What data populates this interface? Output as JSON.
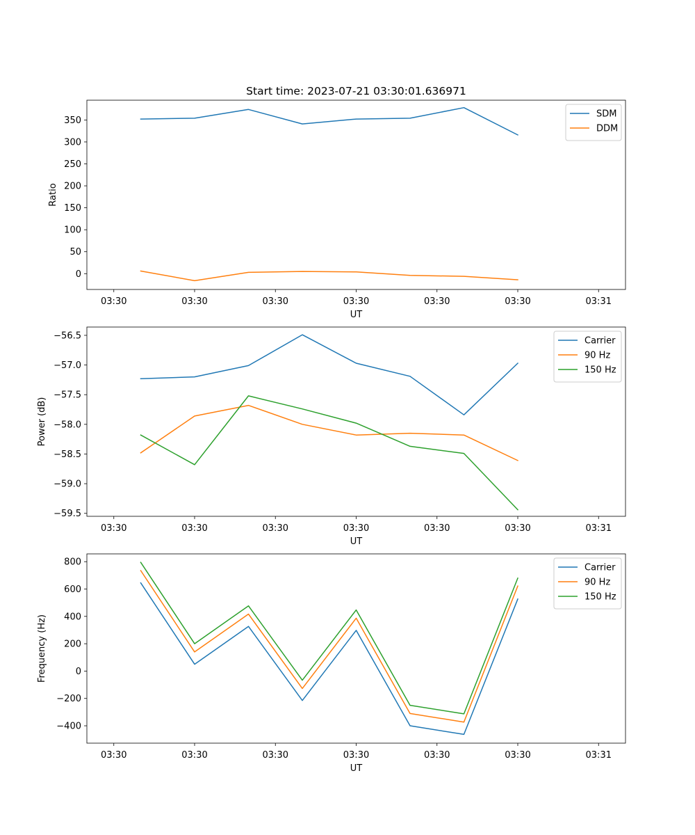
{
  "figure_title": "Start time: 2023-07-21 03:30:01.636971",
  "chart_data": [
    {
      "type": "line",
      "title": "Start time: 2023-07-21 03:30:01.636971",
      "xlabel": "UT",
      "ylabel": "Ratio",
      "x": [
        1,
        2,
        3,
        4,
        5,
        6,
        7,
        8
      ],
      "xlim": [
        0,
        10
      ],
      "xticks": [
        0.5,
        2,
        3.5,
        5,
        6.5,
        8,
        9.5
      ],
      "xtick_labels": [
        "03:30",
        "03:30",
        "03:30",
        "03:30",
        "03:30",
        "03:30",
        "03:31"
      ],
      "ylim": [
        -36,
        395
      ],
      "yticks": [
        0,
        50,
        100,
        150,
        200,
        250,
        300,
        350
      ],
      "ytick_labels": [
        "0",
        "50",
        "100",
        "150",
        "200",
        "250",
        "300",
        "350"
      ],
      "legend_position": "top-right",
      "series": [
        {
          "name": "SDM",
          "color": "#1f77b4",
          "values": [
            352,
            354,
            374,
            341,
            352,
            354,
            378,
            316
          ]
        },
        {
          "name": "DDM",
          "color": "#ff7f0e",
          "values": [
            6,
            -16,
            3,
            5,
            4,
            -4,
            -6,
            -14
          ]
        }
      ]
    },
    {
      "type": "line",
      "title": "",
      "xlabel": "UT",
      "ylabel": "Power (dB)",
      "x": [
        1,
        2,
        3,
        4,
        5,
        6,
        7,
        8
      ],
      "xlim": [
        0,
        10
      ],
      "xticks": [
        0.5,
        2,
        3.5,
        5,
        6.5,
        8,
        9.5
      ],
      "xtick_labels": [
        "03:30",
        "03:30",
        "03:30",
        "03:30",
        "03:30",
        "03:30",
        "03:31"
      ],
      "ylim": [
        -59.55,
        -56.36
      ],
      "yticks": [
        -59.5,
        -59.0,
        -58.5,
        -58.0,
        -57.5,
        -57.0,
        -56.5
      ],
      "ytick_labels": [
        "−59.5",
        "−59.0",
        "−58.5",
        "−58.0",
        "−57.5",
        "−57.0",
        "−56.5"
      ],
      "legend_position": "top-right",
      "series": [
        {
          "name": "Carrier",
          "color": "#1f77b4",
          "values": [
            -57.23,
            -57.2,
            -57.01,
            -56.49,
            -56.97,
            -57.19,
            -57.84,
            -56.97
          ]
        },
        {
          "name": "90 Hz",
          "color": "#ff7f0e",
          "values": [
            -58.48,
            -57.86,
            -57.68,
            -58.0,
            -58.18,
            -58.15,
            -58.18,
            -58.61
          ]
        },
        {
          "name": "150 Hz",
          "color": "#2ca02c",
          "values": [
            -58.18,
            -58.68,
            -57.52,
            -57.74,
            -57.98,
            -58.37,
            -58.49,
            -59.44
          ]
        }
      ]
    },
    {
      "type": "line",
      "title": "",
      "xlabel": "UT",
      "ylabel": "Frequency (Hz)",
      "x": [
        1,
        2,
        3,
        4,
        5,
        6,
        7,
        8
      ],
      "xlim": [
        0,
        10
      ],
      "xticks": [
        0.5,
        2,
        3.5,
        5,
        6.5,
        8,
        9.5
      ],
      "xtick_labels": [
        "03:30",
        "03:30",
        "03:30",
        "03:30",
        "03:30",
        "03:30",
        "03:31"
      ],
      "ylim": [
        -527,
        857
      ],
      "yticks": [
        -400,
        -200,
        0,
        200,
        400,
        600,
        800
      ],
      "ytick_labels": [
        "−400",
        "−200",
        "0",
        "200",
        "400",
        "600",
        "800"
      ],
      "legend_position": "top-right",
      "series": [
        {
          "name": "Carrier",
          "color": "#1f77b4",
          "values": [
            645,
            50,
            327,
            -215,
            298,
            -400,
            -463,
            527
          ]
        },
        {
          "name": "90 Hz",
          "color": "#ff7f0e",
          "values": [
            735,
            140,
            417,
            -127,
            387,
            -310,
            -373,
            622
          ]
        },
        {
          "name": "150 Hz",
          "color": "#2ca02c",
          "values": [
            795,
            200,
            477,
            -67,
            447,
            -250,
            -313,
            680
          ]
        }
      ]
    }
  ]
}
